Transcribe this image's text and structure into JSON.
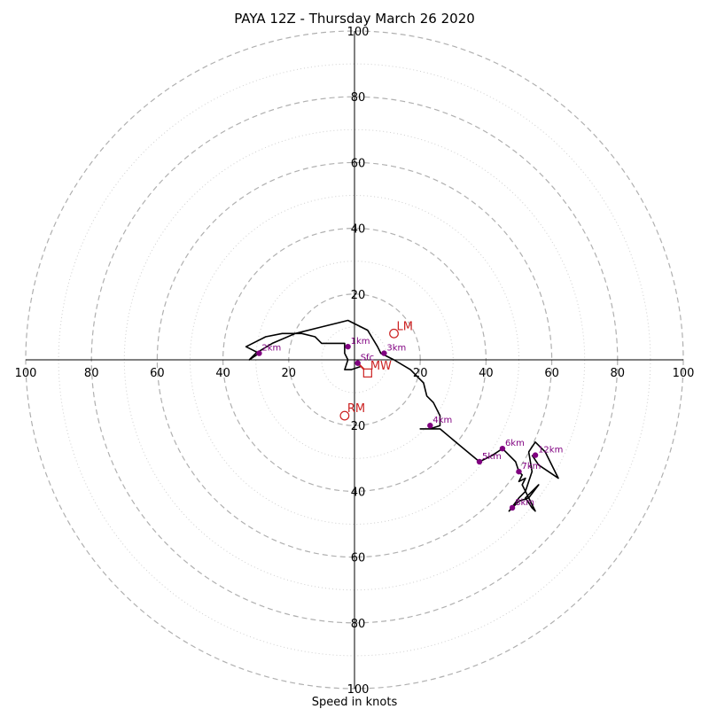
{
  "chart_data": {
    "type": "hodograph",
    "title": "PAYA 12Z - Thursday March 26 2020",
    "xlabel": "Speed in knots",
    "units": "knots",
    "range": [
      -100,
      100
    ],
    "major_rings": [
      20,
      40,
      60,
      80,
      100
    ],
    "minor_rings": [
      10,
      30,
      50,
      70,
      90
    ],
    "tick_labels": [
      "100",
      "80",
      "60",
      "40",
      "20",
      "20",
      "40",
      "60",
      "80",
      "100"
    ],
    "colors": {
      "trace": "#000000",
      "height_marker": "#800080",
      "motion_marker": "#cc2222",
      "major_ring": "#b0b0b0",
      "minor_ring": "#cfcfcf"
    },
    "trace": [
      [
        2,
        -2
      ],
      [
        -1,
        -3
      ],
      [
        -3,
        -3
      ],
      [
        -2,
        0
      ],
      [
        -3,
        2
      ],
      [
        -3,
        5
      ],
      [
        -4,
        5
      ],
      [
        -7,
        5
      ],
      [
        -10,
        5
      ],
      [
        -12,
        7
      ],
      [
        -16,
        8
      ],
      [
        -22,
        8
      ],
      [
        -27,
        7
      ],
      [
        -33,
        4
      ],
      [
        -29,
        2
      ],
      [
        -32,
        0
      ],
      [
        -30,
        2
      ],
      [
        -25,
        5
      ],
      [
        -18,
        8
      ],
      [
        -10,
        10
      ],
      [
        -2,
        12
      ],
      [
        4,
        9
      ],
      [
        7,
        4
      ],
      [
        8,
        2
      ],
      [
        12,
        0
      ],
      [
        17,
        -3
      ],
      [
        19,
        -5
      ],
      [
        21,
        -7
      ],
      [
        22,
        -11
      ],
      [
        24,
        -13
      ],
      [
        26,
        -17
      ],
      [
        26,
        -20
      ],
      [
        23,
        -21
      ],
      [
        20,
        -21
      ],
      [
        26,
        -21
      ],
      [
        32,
        -26
      ],
      [
        38,
        -31
      ],
      [
        42,
        -29
      ],
      [
        45,
        -27
      ],
      [
        49,
        -31
      ],
      [
        50,
        -34
      ],
      [
        51,
        -35
      ],
      [
        50,
        -37
      ],
      [
        52,
        -36
      ],
      [
        51,
        -38
      ],
      [
        52,
        -40
      ],
      [
        50,
        -42
      ],
      [
        47,
        -46
      ],
      [
        50,
        -43
      ],
      [
        53,
        -42
      ],
      [
        56,
        -38
      ],
      [
        52,
        -42
      ],
      [
        54,
        -45
      ],
      [
        55,
        -46
      ],
      [
        52,
        -40
      ],
      [
        54,
        -34
      ],
      [
        53,
        -28
      ],
      [
        55,
        -25
      ],
      [
        58,
        -28
      ],
      [
        62,
        -36
      ],
      [
        56,
        -32
      ],
      [
        54,
        -29
      ]
    ],
    "height_markers": [
      {
        "label": "Sfc",
        "u": 1,
        "v": -1
      },
      {
        "label": "1km",
        "u": -2,
        "v": 4
      },
      {
        "label": "2km",
        "u": -29,
        "v": 2
      },
      {
        "label": "3km",
        "u": 9,
        "v": 2
      },
      {
        "label": "4km",
        "u": 23,
        "v": -20
      },
      {
        "label": "5km",
        "u": 38,
        "v": -31
      },
      {
        "label": "6km",
        "u": 45,
        "v": -27
      },
      {
        "label": "7km",
        "u": 50,
        "v": -34
      },
      {
        "label": "8km",
        "u": 48,
        "v": -45
      },
      {
        "label": "12km",
        "u": 55,
        "v": -29
      }
    ],
    "storm_motions": [
      {
        "label": "LM",
        "u": 12,
        "v": 8,
        "shape": "circle"
      },
      {
        "label": "MW",
        "u": 4,
        "v": -4,
        "shape": "square"
      },
      {
        "label": "RM",
        "u": -3,
        "v": -17,
        "shape": "circle"
      }
    ],
    "shear_vector": {
      "from": [
        1,
        -1
      ],
      "to": [
        3,
        -3
      ]
    }
  }
}
